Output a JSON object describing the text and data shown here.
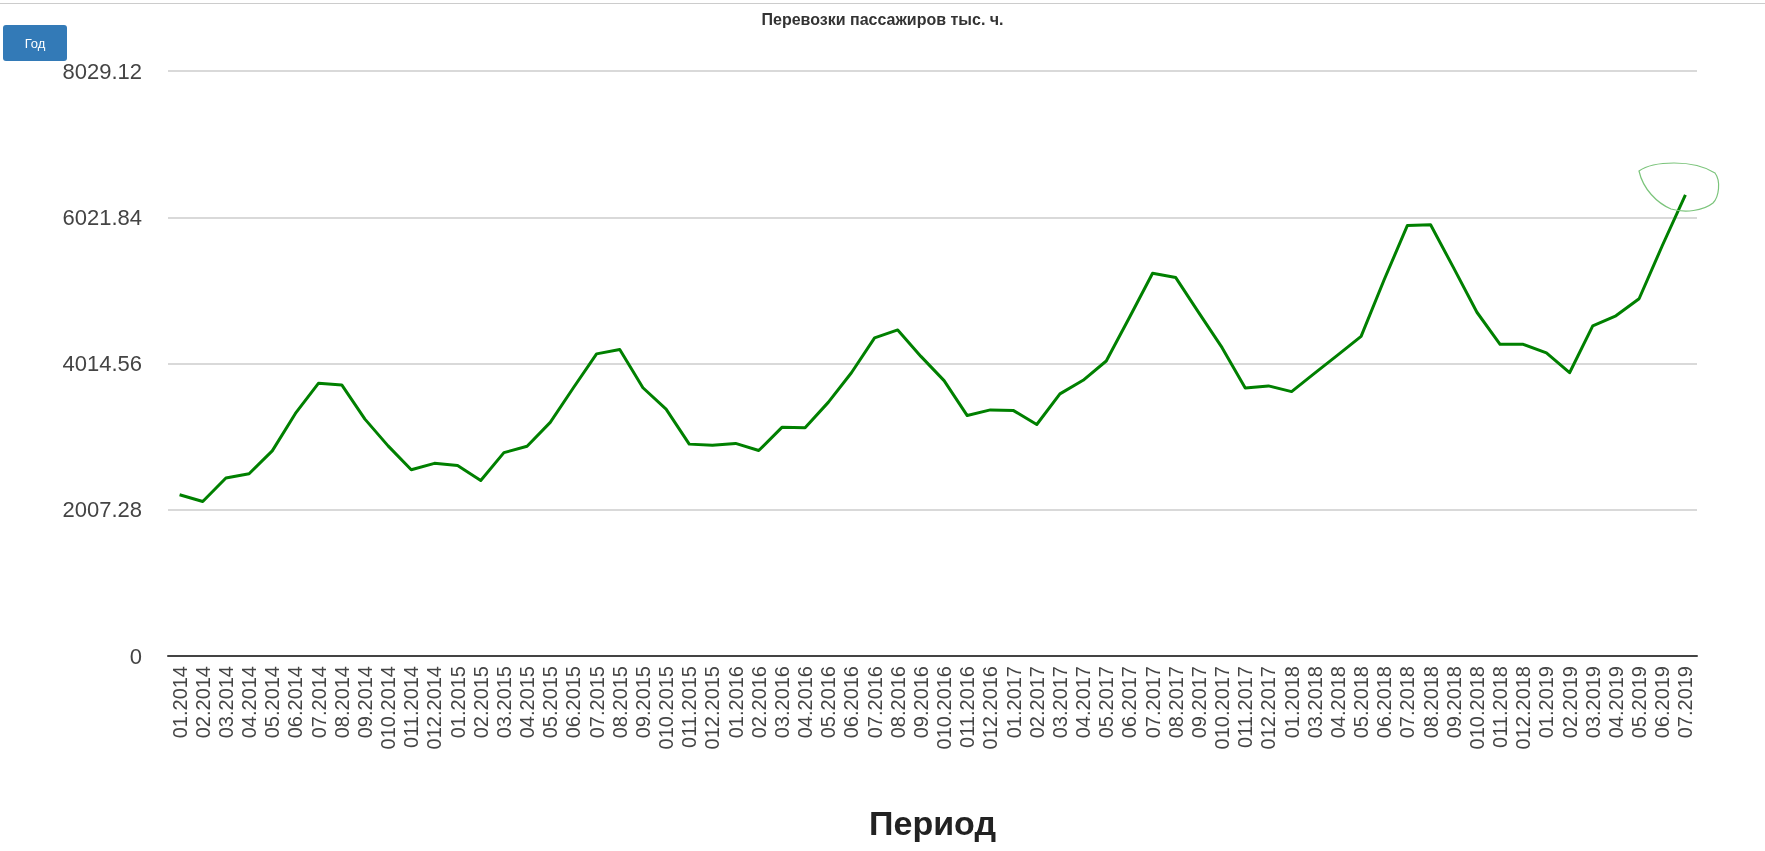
{
  "chart_data": {
    "type": "line",
    "title": "Перевозки пассажиров тыс. ч.",
    "xlabel": "Период",
    "annotations": [
      "Год"
    ],
    "categories": [
      "01.2014",
      "02.2014",
      "03.2014",
      "04.2014",
      "05.2014",
      "06.2014",
      "07.2014",
      "08.2014",
      "09.2014",
      "010.2014",
      "011.2014",
      "012.2014",
      "01.2015",
      "02.2015",
      "03.2015",
      "04.2015",
      "05.2015",
      "06.2015",
      "07.2015",
      "08.2015",
      "09.2015",
      "010.2015",
      "011.2015",
      "012.2015",
      "01.2016",
      "02.2016",
      "03.2016",
      "04.2016",
      "05.2016",
      "06.2016",
      "07.2016",
      "08.2016",
      "09.2016",
      "010.2016",
      "011.2016",
      "012.2016",
      "01.2017",
      "02.2017",
      "03.2017",
      "04.2017",
      "05.2017",
      "06.2017",
      "07.2017",
      "08.2017",
      "09.2017",
      "010.2017",
      "011.2017",
      "012.2017",
      "01.2018",
      "03.2018",
      "04.2018",
      "05.2018",
      "06.2018",
      "07.2018",
      "08.2018",
      "09.2018",
      "010.2018",
      "011.2018",
      "012.2018",
      "01.2019",
      "02.2019",
      "03.2019",
      "04.2019",
      "05.2019",
      "06.2019",
      "07.2019"
    ],
    "series": [
      {
        "color": "#008000",
        "values": [
          2213,
          2120,
          2443,
          2502,
          2815,
          3329,
          3745,
          3721,
          3251,
          2884,
          2556,
          2644,
          2614,
          2409,
          2791,
          2879,
          3207,
          3682,
          4147,
          4206,
          3682,
          3388,
          2908,
          2893,
          2918,
          2820,
          3138,
          3134,
          3481,
          3887,
          4367,
          4475,
          4112,
          3780,
          3300,
          3378,
          3368,
          3177,
          3598,
          3784,
          4049,
          4646,
          5253,
          5194,
          4710,
          4232,
          3678,
          3707,
          3629,
          3883,
          4132,
          4386,
          5167,
          5910,
          5919,
          5323,
          4718,
          4278,
          4278,
          4161,
          3888,
          4532,
          4669,
          4903,
          5631,
          6330
        ]
      }
    ],
    "ylim": [
      0,
      8029.12
    ],
    "yticks": [
      0,
      2007.28,
      4014.56,
      6021.84,
      8029.12
    ],
    "grid": "y",
    "marker": "none",
    "line_style": "solid"
  }
}
